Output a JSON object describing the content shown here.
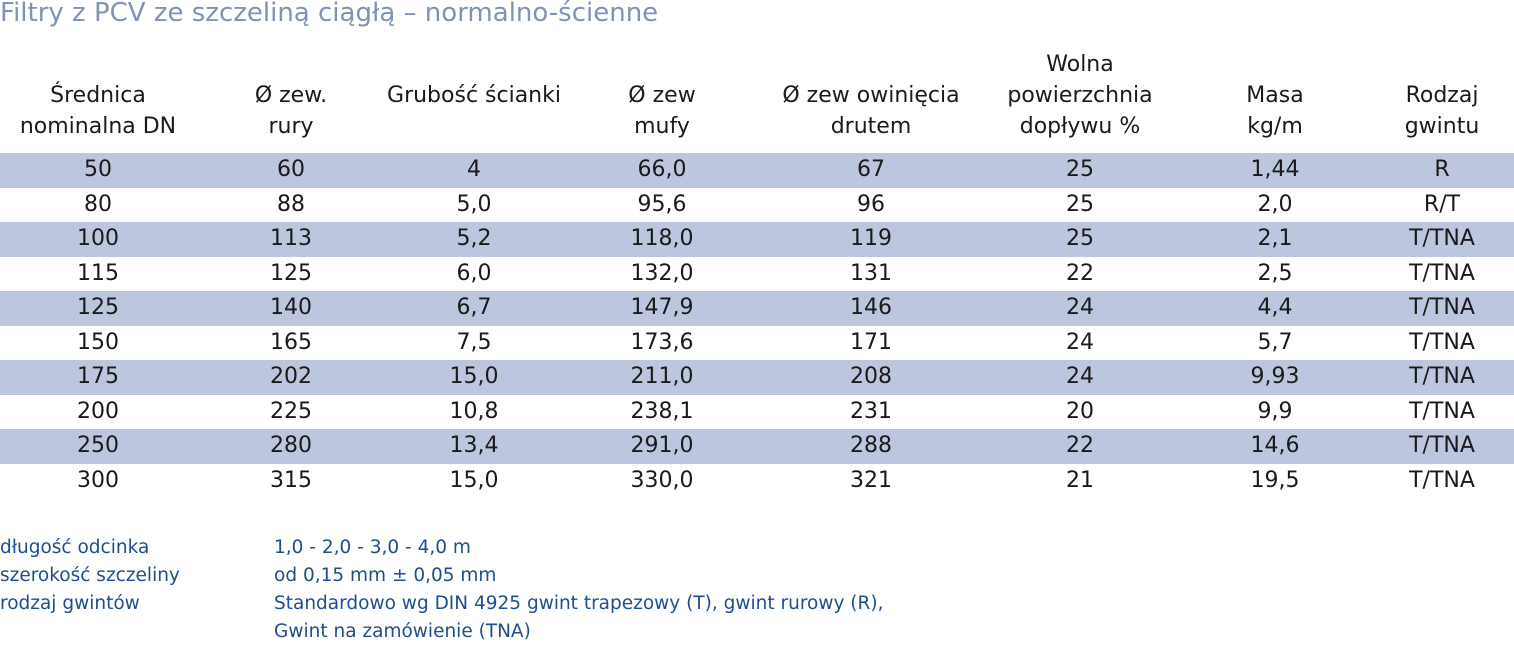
{
  "title": "Filtry z PCV ze szczeliną ciągłą – normalno-ścienne",
  "colors": {
    "title": "#7f93b5",
    "row_shading": "#bdc6df",
    "notes_text": "#1f4e8c"
  },
  "table": {
    "headers": [
      "Średnica\nnominalna DN",
      "Ø zew.\nrury",
      "Grubość ścianki",
      "Ø zew\nmufy",
      "Ø zew owinięcia\ndrutem",
      "Wolna\npowierzchnia\ndopływu %",
      "Masa\nkg/m",
      "Rodzaj\ngwintu"
    ],
    "rows": [
      [
        "50",
        "60",
        "4",
        "66,0",
        "67",
        "25",
        "1,44",
        "R"
      ],
      [
        "80",
        "88",
        "5,0",
        "95,6",
        "96",
        "25",
        "2,0",
        "R/T"
      ],
      [
        "100",
        "113",
        "5,2",
        "118,0",
        "119",
        "25",
        "2,1",
        "T/TNA"
      ],
      [
        "115",
        "125",
        "6,0",
        "132,0",
        "131",
        "22",
        "2,5",
        "T/TNA"
      ],
      [
        "125",
        "140",
        "6,7",
        "147,9",
        "146",
        "24",
        "4,4",
        "T/TNA"
      ],
      [
        "150",
        "165",
        "7,5",
        "173,6",
        "171",
        "24",
        "5,7",
        "T/TNA"
      ],
      [
        "175",
        "202",
        "15,0",
        "211,0",
        "208",
        "24",
        "9,93",
        "T/TNA"
      ],
      [
        "200",
        "225",
        "10,8",
        "238,1",
        "231",
        "20",
        "9,9",
        "T/TNA"
      ],
      [
        "250",
        "280",
        "13,4",
        "291,0",
        "288",
        "22",
        "14,6",
        "T/TNA"
      ],
      [
        "300",
        "315",
        "15,0",
        "330,0",
        "321",
        "21",
        "19,5",
        "T/TNA"
      ]
    ]
  },
  "notes": [
    {
      "label": "długość odcinka",
      "value": "1,0 - 2,0 - 3,0 - 4,0 m"
    },
    {
      "label": "szerokość szczeliny",
      "value": "od 0,15 mm ± 0,05 mm"
    },
    {
      "label": "rodzaj gwintów",
      "value": "Standardowo wg DIN 4925 gwint trapezowy (T), gwint rurowy (R),"
    },
    {
      "label": "",
      "value": "Gwint na zamówienie (TNA)"
    }
  ]
}
